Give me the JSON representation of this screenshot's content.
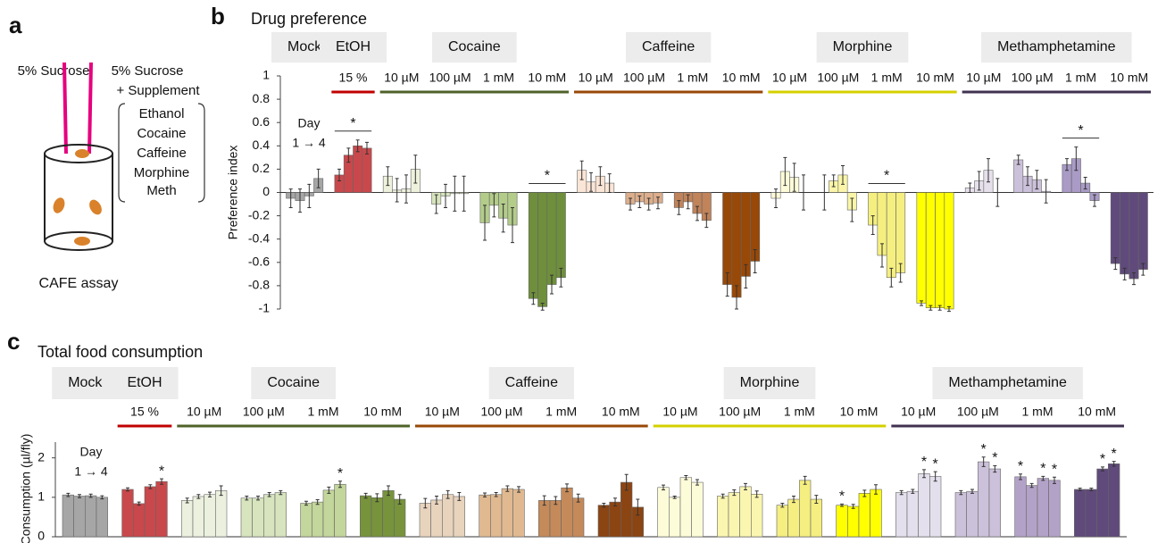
{
  "panel_a": {
    "label": "a",
    "left_tube": "5% Sucrose",
    "right_tube": [
      "5% Sucrose",
      "+ Supplement"
    ],
    "supplements": [
      "Ethanol",
      "Cocaine",
      "Caffeine",
      "Morphine",
      "Meth"
    ],
    "caption": "CAFE assay"
  },
  "chart_data": [
    {
      "type": "bar",
      "panel": "b",
      "title": "Drug preference",
      "ylabel": "Preference index",
      "ylim": [
        -1,
        1
      ],
      "yticks": [
        -1,
        -0.8,
        -0.6,
        -0.4,
        -0.2,
        0,
        0.2,
        0.4,
        0.6,
        0.8,
        1
      ],
      "day_label": "Day",
      "day_range": "1 → 4",
      "groups": [
        {
          "name": "Mock",
          "doses": [
            {
              "color": "#a6a6a6",
              "values": [
                -0.05,
                -0.07,
                -0.03,
                0.12
              ],
              "errors": [
                0.08,
                0.1,
                0.1,
                0.08
              ]
            }
          ]
        },
        {
          "name": "EtOH",
          "line_color": "#c00000",
          "doses": [
            {
              "label": "15 %",
              "color": "#c9484b",
              "values": [
                0.15,
                0.32,
                0.4,
                0.38
              ],
              "errors": [
                0.05,
                0.06,
                0.05,
                0.05
              ],
              "star": "*"
            }
          ]
        },
        {
          "name": "Cocaine",
          "line_color": "#4f6228",
          "doses": [
            {
              "label": "10 µM",
              "color": "#eef2dc",
              "values": [
                0.14,
                0.02,
                0.03,
                0.2
              ],
              "errors": [
                0.08,
                0.1,
                0.12,
                0.12
              ]
            },
            {
              "label": "100 µM",
              "color": "#d7e4bd",
              "values": [
                -0.1,
                -0.03,
                -0.01,
                -0.01
              ],
              "errors": [
                0.08,
                0.1,
                0.15,
                0.15
              ]
            },
            {
              "label": "1 mM",
              "color": "#b3cc8a",
              "values": [
                -0.26,
                -0.11,
                -0.22,
                -0.28
              ],
              "errors": [
                0.15,
                0.1,
                0.12,
                0.15
              ]
            },
            {
              "label": "10 mM",
              "color": "#6f8f3c",
              "values": [
                -0.91,
                -0.98,
                -0.79,
                -0.73
              ],
              "errors": [
                0.05,
                0.03,
                0.08,
                0.08
              ],
              "star": "*"
            }
          ]
        },
        {
          "name": "Caffeine",
          "line_color": "#984807",
          "doses": [
            {
              "label": "10 µM",
              "color": "#fbe5d6",
              "values": [
                0.19,
                0.09,
                0.14,
                0.08
              ],
              "errors": [
                0.08,
                0.08,
                0.08,
                0.08
              ]
            },
            {
              "label": "100 µM",
              "color": "#dcae8c",
              "values": [
                -0.1,
                -0.08,
                -0.1,
                -0.09
              ],
              "errors": [
                0.05,
                0.05,
                0.05,
                0.05
              ]
            },
            {
              "label": "1 mM",
              "color": "#c0835a",
              "values": [
                -0.13,
                -0.08,
                -0.18,
                -0.24
              ],
              "errors": [
                0.06,
                0.06,
                0.06,
                0.06
              ]
            },
            {
              "label": "10 mM",
              "color": "#984807",
              "values": [
                -0.79,
                -0.9,
                -0.72,
                -0.59
              ],
              "errors": [
                0.1,
                0.1,
                0.1,
                0.1
              ]
            }
          ]
        },
        {
          "name": "Morphine",
          "line_color": "#d4d000",
          "doses": [
            {
              "label": "10 µM",
              "color": "#fdfbd8",
              "values": [
                -0.05,
                0.18,
                0.13,
                0
              ],
              "errors": [
                0.08,
                0.12,
                0.12,
                0.15
              ]
            },
            {
              "label": "100 µM",
              "color": "#faf5a8",
              "values": [
                0,
                0.1,
                0.15,
                -0.15
              ],
              "errors": [
                0.15,
                0.05,
                0.08,
                0.1
              ]
            },
            {
              "label": "1 mM",
              "color": "#f5ef80",
              "values": [
                -0.28,
                -0.54,
                -0.73,
                -0.69
              ],
              "errors": [
                0.08,
                0.1,
                0.08,
                0.08
              ],
              "star": "*"
            },
            {
              "label": "10 mM",
              "color": "#ffff00",
              "values": [
                -0.95,
                -0.99,
                -0.99,
                -1
              ],
              "errors": [
                0.02,
                0.02,
                0.02,
                0.02
              ]
            }
          ]
        },
        {
          "name": "Methamphetamine",
          "line_color": "#403151",
          "doses": [
            {
              "label": "10 µM",
              "color": "#e6e0ec",
              "values": [
                0.04,
                0.1,
                0.19,
                0
              ],
              "errors": [
                0.04,
                0.08,
                0.1,
                0.12
              ]
            },
            {
              "label": "100 µM",
              "color": "#ccc1da",
              "values": [
                0.28,
                0.14,
                0.11,
                0.01
              ],
              "errors": [
                0.04,
                0.08,
                0.08,
                0.1
              ]
            },
            {
              "label": "1 mM",
              "color": "#a99bc6",
              "values": [
                0.24,
                0.29,
                0.08,
                -0.07
              ],
              "errors": [
                0.05,
                0.1,
                0.05,
                0.05
              ],
              "star": "*"
            },
            {
              "label": "10 mM",
              "color": "#604a7b",
              "values": [
                -0.61,
                -0.7,
                -0.74,
                -0.66
              ],
              "errors": [
                0.05,
                0.05,
                0.05,
                0.05
              ]
            }
          ]
        }
      ]
    },
    {
      "type": "bar",
      "panel": "c",
      "title": "Total food consumption",
      "ylabel": "Consumption (µl/fly)",
      "ylim": [
        0,
        2.4
      ],
      "yticks": [
        0,
        1,
        2
      ],
      "day_label": "Day",
      "day_range": "1 → 4",
      "groups": [
        {
          "name": "Mock",
          "doses": [
            {
              "color": "#a6a6a6",
              "values": [
                1.06,
                1.03,
                1.04,
                1.0
              ],
              "errors": [
                0.04,
                0.04,
                0.04,
                0.04
              ]
            }
          ]
        },
        {
          "name": "EtOH",
          "line_color": "#c00000",
          "doses": [
            {
              "label": "15 %",
              "color": "#c9484b",
              "values": [
                1.2,
                0.84,
                1.27,
                1.4
              ],
              "errors": [
                0.04,
                0.04,
                0.05,
                0.07
              ],
              "stars": [
                null,
                null,
                null,
                "*"
              ]
            }
          ]
        },
        {
          "name": "Cocaine",
          "line_color": "#4f6228",
          "doses": [
            {
              "label": "10 µM",
              "color": "#ebf1de",
              "values": [
                0.92,
                1.02,
                1.07,
                1.17
              ],
              "errors": [
                0.06,
                0.05,
                0.06,
                0.12
              ]
            },
            {
              "label": "100 µM",
              "color": "#d7e4bd",
              "values": [
                0.98,
                0.98,
                1.07,
                1.12
              ],
              "errors": [
                0.05,
                0.05,
                0.05,
                0.05
              ]
            },
            {
              "label": "1 mM",
              "color": "#c3d69b",
              "values": [
                0.85,
                0.88,
                1.18,
                1.33
              ],
              "errors": [
                0.05,
                0.06,
                0.08,
                0.08
              ],
              "stars": [
                null,
                null,
                null,
                "*"
              ]
            },
            {
              "label": "10 mM",
              "color": "#77933c",
              "values": [
                1.04,
                0.99,
                1.17,
                0.95
              ],
              "errors": [
                0.06,
                0.1,
                0.12,
                0.12
              ]
            }
          ]
        },
        {
          "name": "Caffeine",
          "line_color": "#984807",
          "doses": [
            {
              "label": "10 µM",
              "color": "#e8d3bd",
              "values": [
                0.85,
                0.93,
                1.07,
                1.02
              ],
              "errors": [
                0.12,
                0.1,
                0.1,
                0.1
              ]
            },
            {
              "label": "100 µM",
              "color": "#e0b990",
              "values": [
                1.06,
                1.07,
                1.22,
                1.2
              ],
              "errors": [
                0.05,
                0.05,
                0.07,
                0.07
              ]
            },
            {
              "label": "1 mM",
              "color": "#c58a5a",
              "values": [
                0.92,
                0.92,
                1.24,
                0.98
              ],
              "errors": [
                0.12,
                0.1,
                0.1,
                0.1
              ]
            },
            {
              "label": "10 mM",
              "color": "#8b4513",
              "values": [
                0.8,
                0.88,
                1.38,
                0.75
              ],
              "errors": [
                0.05,
                0.1,
                0.2,
                0.2
              ]
            }
          ]
        },
        {
          "name": "Morphine",
          "line_color": "#d4d000",
          "doses": [
            {
              "label": "10 µM",
              "color": "#fdfcd8",
              "values": [
                1.25,
                1.0,
                1.5,
                1.38
              ],
              "errors": [
                0.06,
                0.03,
                0.05,
                0.07
              ]
            },
            {
              "label": "100 µM",
              "color": "#faf6b0",
              "values": [
                1.03,
                1.12,
                1.27,
                1.08
              ],
              "errors": [
                0.05,
                0.07,
                0.08,
                0.08
              ]
            },
            {
              "label": "1 mM",
              "color": "#f5ee80",
              "values": [
                0.8,
                0.95,
                1.43,
                0.95
              ],
              "errors": [
                0.05,
                0.08,
                0.1,
                0.1
              ]
            },
            {
              "label": "10 mM",
              "color": "#ffff00",
              "values": [
                0.8,
                0.77,
                1.1,
                1.2
              ],
              "errors": [
                0.03,
                0.05,
                0.08,
                0.12
              ],
              "stars": [
                "*",
                null,
                null,
                null
              ]
            }
          ]
        },
        {
          "name": "Methamphetamine",
          "line_color": "#403151",
          "doses": [
            {
              "label": "10 µM",
              "color": "#e4dfec",
              "values": [
                1.12,
                1.15,
                1.6,
                1.53
              ],
              "errors": [
                0.05,
                0.05,
                0.1,
                0.12
              ],
              "stars": [
                null,
                null,
                "*",
                "*"
              ]
            },
            {
              "label": "100 µM",
              "color": "#ccc1da",
              "values": [
                1.12,
                1.15,
                1.9,
                1.72
              ],
              "errors": [
                0.05,
                0.05,
                0.12,
                0.08
              ],
              "stars": [
                null,
                null,
                "*",
                "*"
              ]
            },
            {
              "label": "1 mM",
              "color": "#b3a2c7",
              "values": [
                1.52,
                1.3,
                1.48,
                1.43
              ],
              "errors": [
                0.07,
                0.05,
                0.05,
                0.08
              ],
              "stars": [
                "*",
                null,
                "*",
                "*"
              ]
            },
            {
              "label": "10 mM",
              "color": "#604a7b",
              "values": [
                1.2,
                1.2,
                1.72,
                1.85
              ],
              "errors": [
                0.03,
                0.03,
                0.05,
                0.06
              ],
              "stars": [
                null,
                null,
                "*",
                "*"
              ]
            }
          ]
        }
      ]
    }
  ]
}
